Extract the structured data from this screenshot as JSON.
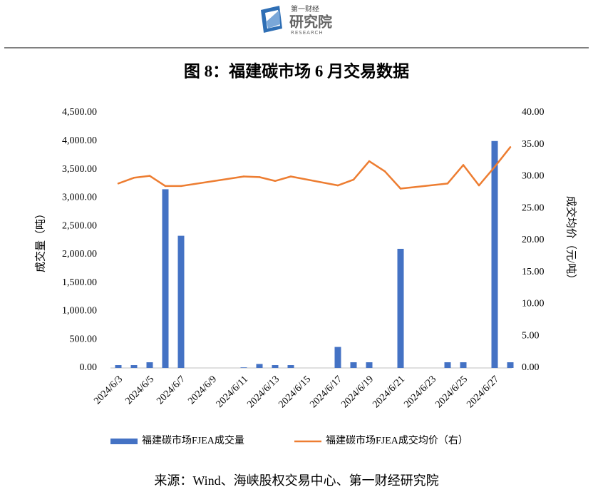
{
  "logo": {
    "top": "第一财经",
    "main": "研究院",
    "sub": "RESEARCH"
  },
  "source": "来源：Wind、海峡股权交易中心、第一财经研究院",
  "chart_data": {
    "type": "bar_line",
    "title": "图 8：福建碳市场 6 月交易数据",
    "y_label": "成交量（吨）",
    "y2_label": "成交均价（元/吨）",
    "categories": [
      "2024/6/3",
      null,
      "2024/6/5",
      null,
      "2024/6/7",
      null,
      "2024/6/9",
      null,
      "2024/6/11",
      null,
      "2024/6/13",
      null,
      "2024/6/15",
      null,
      "2024/6/17",
      null,
      "2024/6/19",
      null,
      "2024/6/21",
      null,
      "2024/6/23",
      null,
      "2024/6/25",
      null,
      "2024/6/27",
      null
    ],
    "series": [
      {
        "name": "福建碳市场FJEA成交量",
        "type": "bar",
        "color": "#4472c4",
        "values": [
          50,
          50,
          100,
          3150,
          2330,
          null,
          null,
          null,
          10,
          70,
          50,
          50,
          null,
          null,
          370,
          100,
          100,
          null,
          2100,
          null,
          null,
          100,
          100,
          null,
          4000,
          100
        ]
      },
      {
        "name": "福建碳市场FJEA成交均价（右）",
        "type": "line",
        "axis": "y2",
        "color": "#ed7d31",
        "values": [
          28.9,
          29.8,
          30.1,
          28.5,
          28.5,
          null,
          null,
          null,
          30.0,
          29.9,
          29.3,
          30.0,
          null,
          null,
          28.6,
          29.5,
          32.4,
          30.8,
          28.1,
          null,
          null,
          28.9,
          31.8,
          28.6,
          31.5,
          34.6
        ]
      }
    ],
    "ylim": [
      0,
      4500
    ],
    "yticks": [
      {
        "value": 0,
        "label": "0.00"
      },
      {
        "value": 500,
        "label": "500.00"
      },
      {
        "value": 1000,
        "label": "1,000.00"
      },
      {
        "value": 1500,
        "label": "1,500.00"
      },
      {
        "value": 2000,
        "label": "2,000.00"
      },
      {
        "value": 2500,
        "label": "2,500.00"
      },
      {
        "value": 3000,
        "label": "3,000.00"
      },
      {
        "value": 3500,
        "label": "3,500.00"
      },
      {
        "value": 4000,
        "label": "4,000.00"
      },
      {
        "value": 4500,
        "label": "4,500.00"
      }
    ],
    "y2lim": [
      0,
      40
    ],
    "y2ticks": [
      {
        "value": 0,
        "label": "0.00"
      },
      {
        "value": 5,
        "label": "5.00"
      },
      {
        "value": 10,
        "label": "10.00"
      },
      {
        "value": 15,
        "label": "15.00"
      },
      {
        "value": 20,
        "label": "20.00"
      },
      {
        "value": 25,
        "label": "25.00"
      },
      {
        "value": 30,
        "label": "30.00"
      },
      {
        "value": 35,
        "label": "35.00"
      },
      {
        "value": 40,
        "label": "40.00"
      }
    ],
    "grid": false,
    "legend": "bottom"
  }
}
